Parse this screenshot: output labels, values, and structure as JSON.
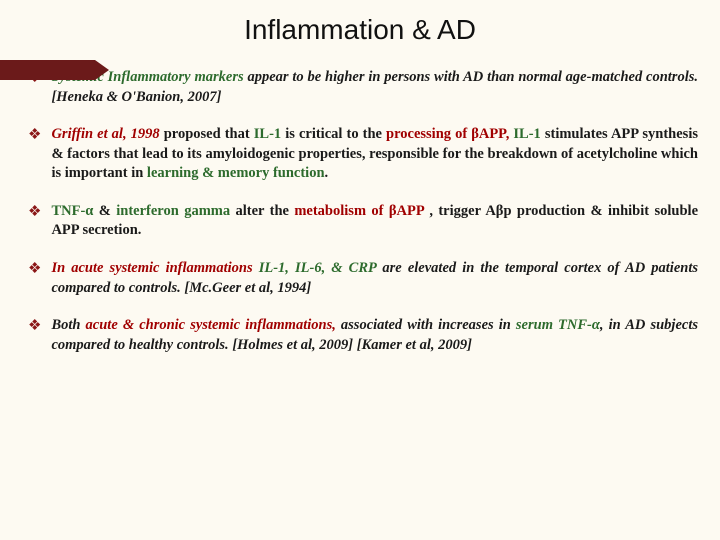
{
  "colors": {
    "background": "#fdfaf2",
    "accent_bar": "#6b1a1a",
    "diamond": "#8a1616",
    "body_text": "#1a1a1a",
    "green": "#2d6b2d",
    "red": "#a00000",
    "title": "#111111"
  },
  "fonts": {
    "title_family": "Arial",
    "title_size_pt": 21,
    "body_family": "Georgia",
    "body_size_pt": 11,
    "body_weight": "bold"
  },
  "title": "Inflammation & AD",
  "bullets": [
    {
      "segments": [
        {
          "text": "Systemic Inflammatory markers",
          "italic": true,
          "color": "green"
        },
        {
          "text": " appear to be higher in persons with AD than normal age-matched controls. ",
          "italic": true
        },
        {
          "text": "[Heneka & O'Banion, 2007]",
          "italic": true
        }
      ]
    },
    {
      "segments": [
        {
          "text": "Griffin et al, 1998",
          "italic": true,
          "color": "red"
        },
        {
          "text": " proposed that "
        },
        {
          "text": "IL-1",
          "color": "green"
        },
        {
          "text": " is critical to the "
        },
        {
          "text": "processing of βAPP,",
          "color": "red"
        },
        {
          "text": " "
        },
        {
          "text": "IL-1",
          "color": "green"
        },
        {
          "text": " stimulates APP synthesis & factors that lead to its amyloidogenic properties, responsible for the breakdown of acetylcholine which is important in "
        },
        {
          "text": "learning & memory function",
          "color": "green"
        },
        {
          "text": "."
        }
      ]
    },
    {
      "segments": [
        {
          "text": "TNF-α",
          "color": "green"
        },
        {
          "text": " & "
        },
        {
          "text": "interferon gamma",
          "color": "green"
        },
        {
          "text": " alter the "
        },
        {
          "text": "metabolism of βAPP",
          "color": "red"
        },
        {
          "text": " , trigger Aβp production & inhibit soluble APP secretion."
        }
      ]
    },
    {
      "segments": [
        {
          "text": "In acute systemic inflammations",
          "italic": true,
          "color": "red"
        },
        {
          "text": " "
        },
        {
          "text": "IL-1, IL-6, & CRP",
          "italic": true,
          "color": "green"
        },
        {
          "text": " are elevated in the temporal cortex of AD patients compared to controls. ",
          "italic": true
        },
        {
          "text": "[Mc.Geer et al, 1994]",
          "italic": true
        }
      ]
    },
    {
      "segments": [
        {
          "text": "Both ",
          "italic": true
        },
        {
          "text": "acute & chronic systemic inflammations,",
          "italic": true,
          "color": "red"
        },
        {
          "text": " associated with increases in ",
          "italic": true
        },
        {
          "text": "serum TNF-α",
          "italic": true,
          "color": "green"
        },
        {
          "text": ", in AD subjects compared to healthy controls. ",
          "italic": true
        },
        {
          "text": "[Holmes et al, 2009] [Kamer et al, 2009]",
          "italic": true
        }
      ]
    }
  ]
}
